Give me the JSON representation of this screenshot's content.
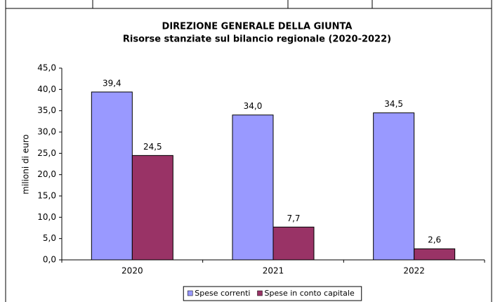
{
  "chart_data": {
    "type": "bar",
    "title": "DIREZIONE  GENERALE  DELLA  GIUNTA",
    "subtitle": "Risorse  stanziate sul  bilancio  regionale  (2020-2022)",
    "y_label": "milioni di euro",
    "categories": [
      "2020",
      "2021",
      "2022"
    ],
    "series": [
      {
        "name": "Spese correnti",
        "color": "#9999ff",
        "values": [
          39.4,
          34.0,
          34.5
        ],
        "value_labels": [
          "39,4",
          "34,0",
          "34,5"
        ]
      },
      {
        "name": "Spese in conto capitale",
        "color": "#993366",
        "values": [
          24.5,
          7.7,
          2.6
        ],
        "value_labels": [
          "24,5",
          "7,7",
          "2,6"
        ]
      }
    ],
    "ylim": [
      0,
      45
    ],
    "yticks": [
      {
        "value": 0,
        "label": "0,0"
      },
      {
        "value": 5,
        "label": "5,0"
      },
      {
        "value": 10,
        "label": "10,0"
      },
      {
        "value": 15,
        "label": "15,0"
      },
      {
        "value": 20,
        "label": "20,0"
      },
      {
        "value": 25,
        "label": "25,0"
      },
      {
        "value": 30,
        "label": "30,0"
      },
      {
        "value": 35,
        "label": "35,0"
      },
      {
        "value": 40,
        "label": "40,0"
      },
      {
        "value": 45,
        "label": "45,0"
      }
    ],
    "grid": false,
    "legend": "bottom"
  }
}
